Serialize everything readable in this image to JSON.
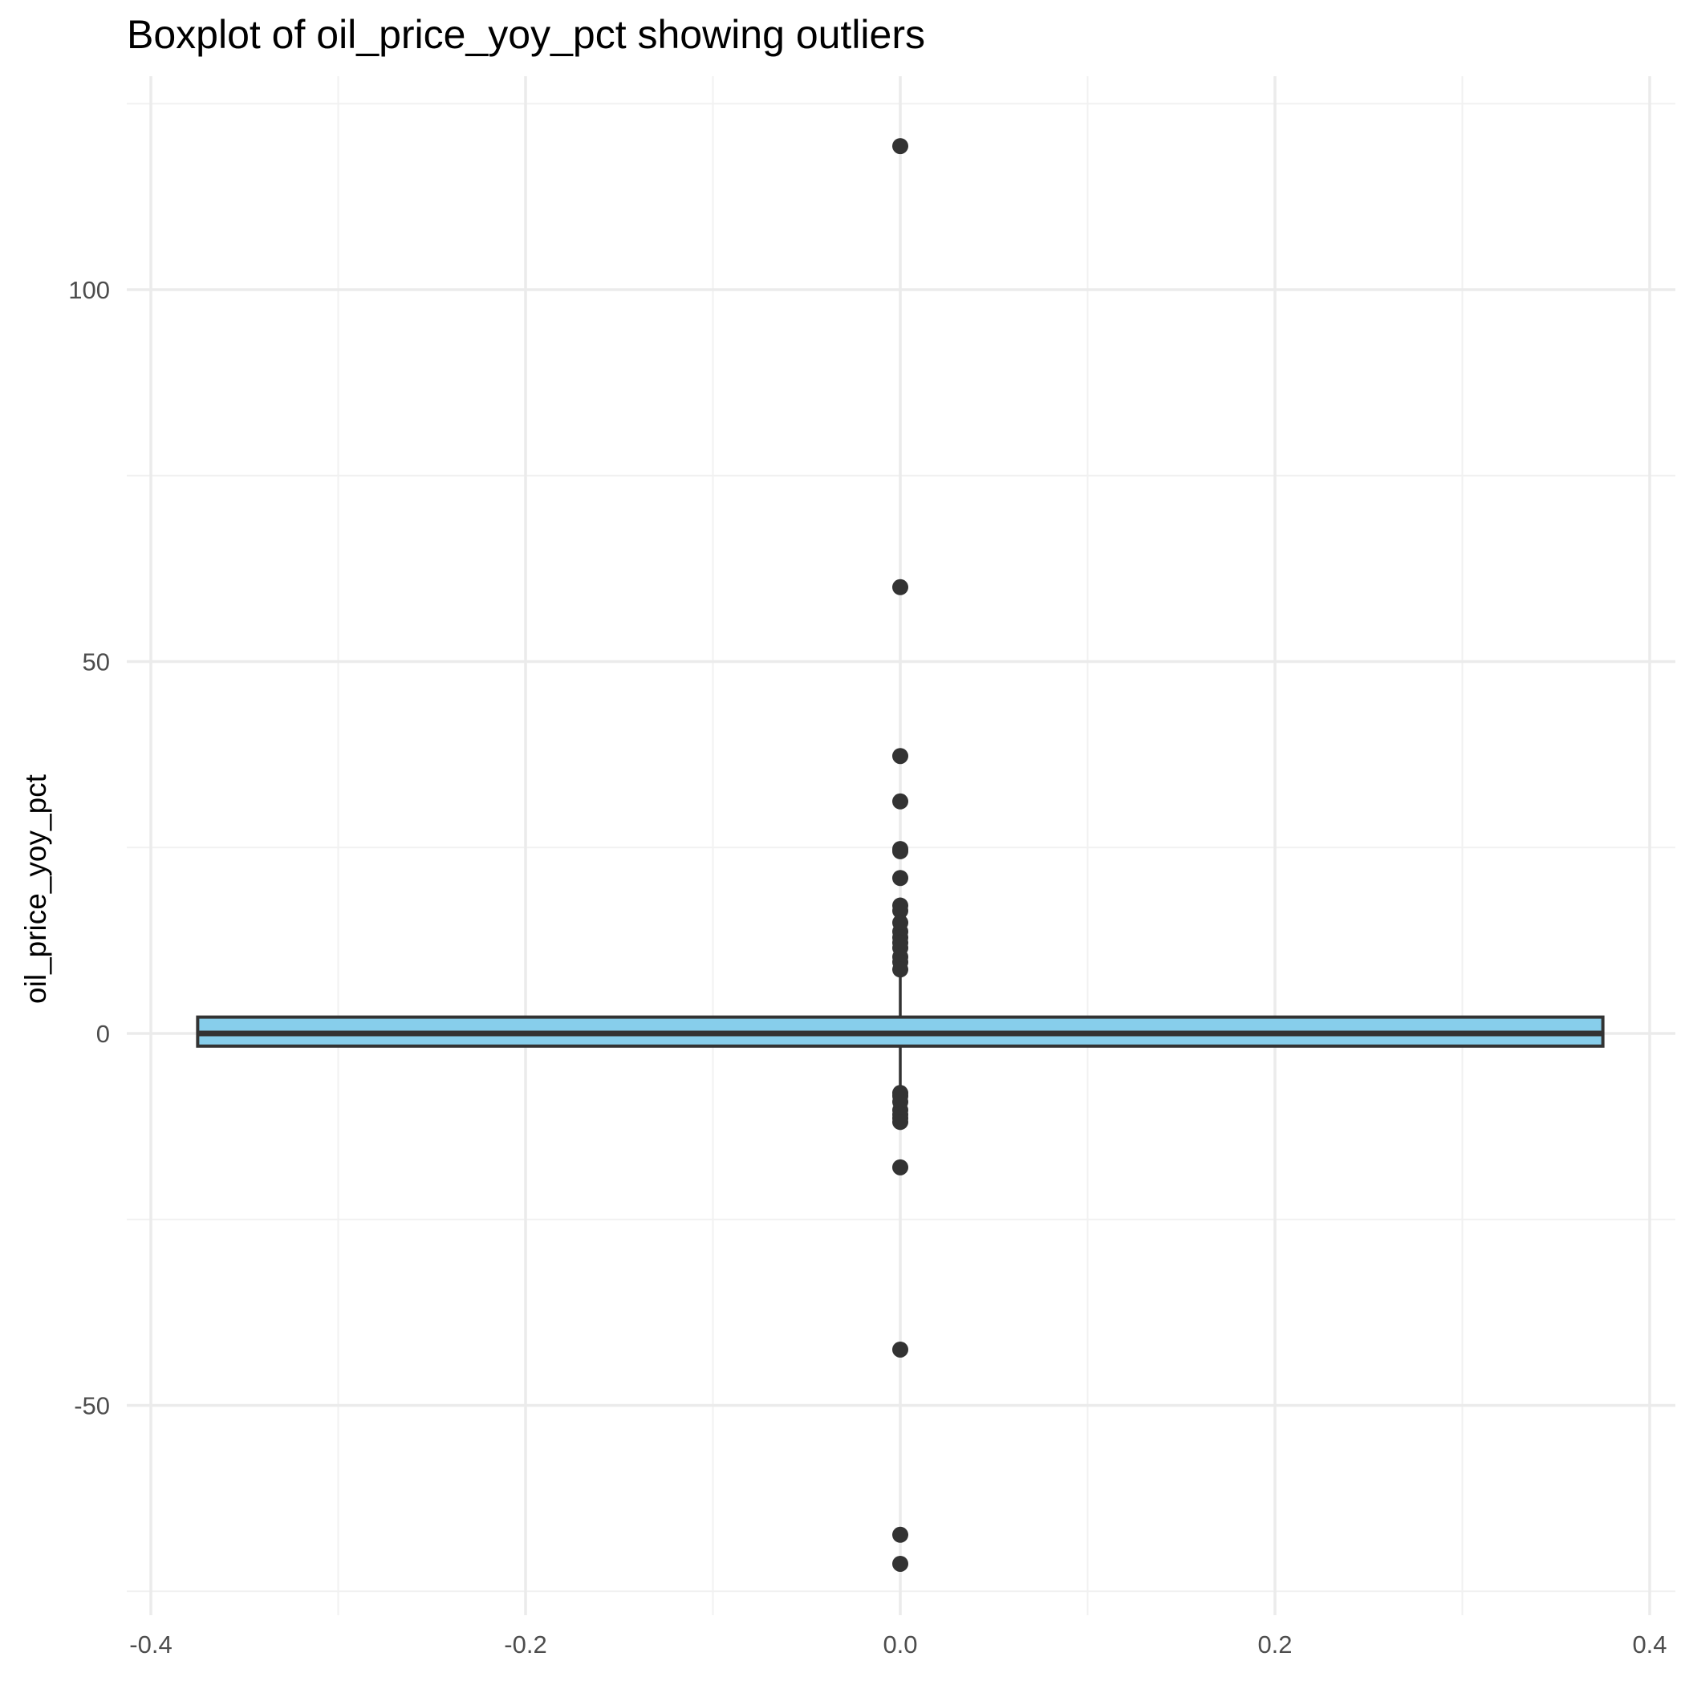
{
  "chart_data": {
    "type": "boxplot",
    "title": "Boxplot of oil_price_yoy_pct showing outliers",
    "xlabel": "",
    "ylabel": "oil_price_yoy_pct",
    "xlim": [
      -0.4,
      0.4
    ],
    "ylim": [
      -75,
      125
    ],
    "x_ticks": [
      -0.4,
      -0.2,
      0.0,
      0.2,
      0.4
    ],
    "x_tick_labels": [
      "-0.4",
      "-0.2",
      "0.0",
      "0.2",
      "0.4"
    ],
    "y_ticks": [
      -50,
      0,
      50,
      100
    ],
    "y_tick_labels": [
      "-50",
      "0",
      "50",
      "100"
    ],
    "grid": true,
    "box": {
      "x": 0.0,
      "width": 0.75,
      "q1": -1.7,
      "median": 0.0,
      "q3": 2.2,
      "whisker_low": -7.5,
      "whisker_high": 8.0,
      "fill": "#87CEEB",
      "stroke": "#333333"
    },
    "outliers": [
      119.3,
      60.0,
      37.3,
      31.2,
      24.8,
      24.5,
      20.9,
      17.2,
      16.5,
      14.9,
      13.7,
      12.9,
      12.2,
      11.5,
      10.3,
      9.6,
      8.6,
      -8.0,
      -8.4,
      -9.2,
      -10.3,
      -10.9,
      -11.4,
      -11.9,
      -18.0,
      -42.5,
      -67.4,
      -71.3
    ],
    "outlier_color": "#333333"
  }
}
